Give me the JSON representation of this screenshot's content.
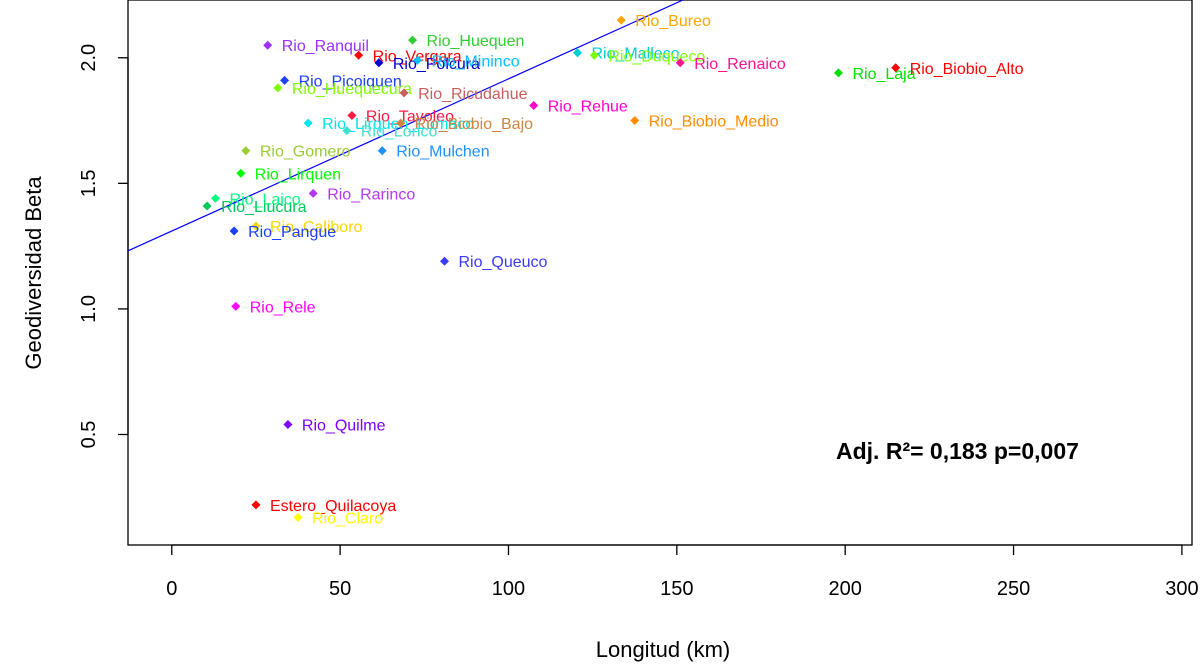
{
  "chart_data": {
    "type": "scatter",
    "title": "",
    "xlabel": "Longitud (km)",
    "ylabel": "Geodiversidad Beta",
    "xlim": [
      -13,
      303
    ],
    "ylim": [
      0.06,
      2.23
    ],
    "x_ticks": [
      0,
      50,
      100,
      150,
      200,
      250,
      300
    ],
    "x_tick_labels": [
      "0",
      "50",
      "100",
      "150",
      "200",
      "250",
      "300"
    ],
    "y_ticks": [
      0.5,
      1.0,
      1.5,
      2.0
    ],
    "y_tick_labels": [
      "0.5",
      "1.0",
      "1.5",
      "2.0"
    ],
    "grid": false,
    "annotation": "Adj. R²= 0,183 p=0,007",
    "regression": {
      "intercept": 1.31,
      "slope": 0.00606,
      "color": "#0000ff"
    },
    "points": [
      {
        "label": "Rio_Bureo",
        "x": 133.5,
        "y": 2.15,
        "color": "#ffa500"
      },
      {
        "label": "Rio_Ranquil",
        "x": 28.5,
        "y": 2.05,
        "color": "#9b30ff"
      },
      {
        "label": "Rio_Huequen",
        "x": 71.5,
        "y": 2.07,
        "color": "#32cd32"
      },
      {
        "label": "Rio_Malleco",
        "x": 120.5,
        "y": 2.02,
        "color": "#00ced1"
      },
      {
        "label": "Rio_Vergara",
        "x": 55.5,
        "y": 2.01,
        "color": "#ff0000"
      },
      {
        "label": "Rio_Polcura",
        "x": 61.5,
        "y": 1.98,
        "color": "#0000cd"
      },
      {
        "label": "Rio_Mininco",
        "x": 73,
        "y": 1.99,
        "color": "#00bfff"
      },
      {
        "label": "Rio_Duqueco",
        "x": 125.5,
        "y": 2.01,
        "color": "#7fff00"
      },
      {
        "label": "Rio_Renaico",
        "x": 151,
        "y": 1.98,
        "color": "#ff1493"
      },
      {
        "label": "Rio_Laja",
        "x": 198,
        "y": 1.94,
        "color": "#00e000"
      },
      {
        "label": "Rio_Biobio_Alto",
        "x": 215,
        "y": 1.96,
        "color": "#ff0000"
      },
      {
        "label": "Rio_Picoiquen",
        "x": 33.5,
        "y": 1.91,
        "color": "#1e40ff"
      },
      {
        "label": "Rio_Huequecura",
        "x": 31.5,
        "y": 1.88,
        "color": "#7cfc00"
      },
      {
        "label": "Rio_Ricudahue",
        "x": 69,
        "y": 1.86,
        "color": "#cd5c5c"
      },
      {
        "label": "Rio_Rehue",
        "x": 107.5,
        "y": 1.81,
        "color": "#ff00cc"
      },
      {
        "label": "Rio_Tavoleo",
        "x": 53.5,
        "y": 1.77,
        "color": "#ff1a40"
      },
      {
        "label": "Rio_Biobio_Medio",
        "x": 137.5,
        "y": 1.75,
        "color": "#ff8c00"
      },
      {
        "label": "Rio_Lirquen_Lumaco",
        "x": 40.5,
        "y": 1.74,
        "color": "#00e5ee"
      },
      {
        "label": "Rio_Biobio_Bajo",
        "x": 68,
        "y": 1.74,
        "color": "#cd853f"
      },
      {
        "label": "Rio_Lonco",
        "x": 52,
        "y": 1.71,
        "color": "#40e0d0"
      },
      {
        "label": "Rio_Mulchen",
        "x": 62.5,
        "y": 1.63,
        "color": "#1e90ff"
      },
      {
        "label": "Rio_Gomero",
        "x": 22,
        "y": 1.63,
        "color": "#9acd32"
      },
      {
        "label": "Rio_Lirquen",
        "x": 20.5,
        "y": 1.54,
        "color": "#00ff00"
      },
      {
        "label": "Rio_Rarinco",
        "x": 42,
        "y": 1.46,
        "color": "#b23aee"
      },
      {
        "label": "Rio_Laico",
        "x": 13,
        "y": 1.44,
        "color": "#00ff7f"
      },
      {
        "label": "Rio_Liucura",
        "x": 10.5,
        "y": 1.41,
        "color": "#00c957"
      },
      {
        "label": "Rio_Caliboro",
        "x": 25,
        "y": 1.33,
        "color": "#ffd700"
      },
      {
        "label": "Rio_Pangue",
        "x": 18.5,
        "y": 1.31,
        "color": "#1c3fff"
      },
      {
        "label": "Rio_Queuco",
        "x": 81,
        "y": 1.19,
        "color": "#3a3aff"
      },
      {
        "label": "Rio_Rele",
        "x": 19,
        "y": 1.01,
        "color": "#ff00ff"
      },
      {
        "label": "Rio_Quilme",
        "x": 34.5,
        "y": 0.54,
        "color": "#7b00ff"
      },
      {
        "label": "Estero_Quilacoya",
        "x": 25,
        "y": 0.22,
        "color": "#ff0000"
      },
      {
        "label": "Rio_Claro",
        "x": 37.5,
        "y": 0.17,
        "color": "#ffff00"
      }
    ]
  }
}
